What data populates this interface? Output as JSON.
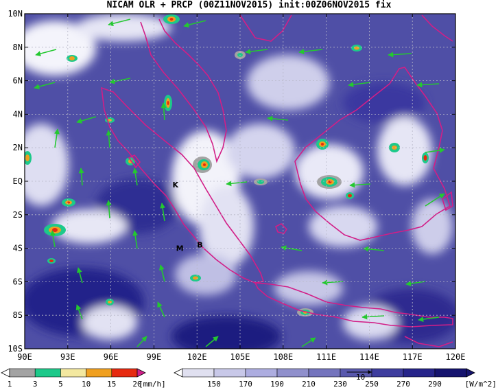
{
  "title": "NICAM OLR + PRCP (00Z11NOV2015) init:00Z06NOV2015 fix",
  "map": {
    "lat_labels": [
      "10N",
      "8N",
      "6N",
      "4N",
      "2N",
      "EQ",
      "2S",
      "4S",
      "6S",
      "8S",
      "10S"
    ],
    "lon_labels": [
      "90E",
      "93E",
      "96E",
      "99E",
      "102E",
      "105E",
      "108E",
      "111E",
      "114E",
      "117E",
      "120E"
    ],
    "markers": [
      {
        "label": "K",
        "lon": 100.5,
        "lat": -0.2
      },
      {
        "label": "M",
        "lon": 100.8,
        "lat": -4.0
      },
      {
        "label": "B",
        "lon": 102.2,
        "lat": -3.8
      }
    ],
    "colors": {
      "olr_low": "#ffffff",
      "olr_high": "#15136e",
      "coast": "#d21e87",
      "wind_vector": "#24c830"
    }
  },
  "precip_colorbar": {
    "values": [
      "1",
      "3",
      "5",
      "10",
      "15",
      "20"
    ],
    "unit": "[mm/h]",
    "colors": [
      "#ffffff",
      "#a3a3a3",
      "#1dc98a",
      "#f3e8a0",
      "#f0a020",
      "#e62a10",
      "#d0208a"
    ]
  },
  "olr_colorbar": {
    "values": [
      "150",
      "170",
      "190",
      "210",
      "230",
      "250",
      "270",
      "290"
    ],
    "unit": "[W/m^2]",
    "vector_label": "10",
    "colors": [
      "#ffffff",
      "#e0e0f0",
      "#c8c8e8",
      "#adade0",
      "#9090cc",
      "#7474bd",
      "#5858ad",
      "#3e3d9e",
      "#26248a",
      "#15136e"
    ]
  }
}
